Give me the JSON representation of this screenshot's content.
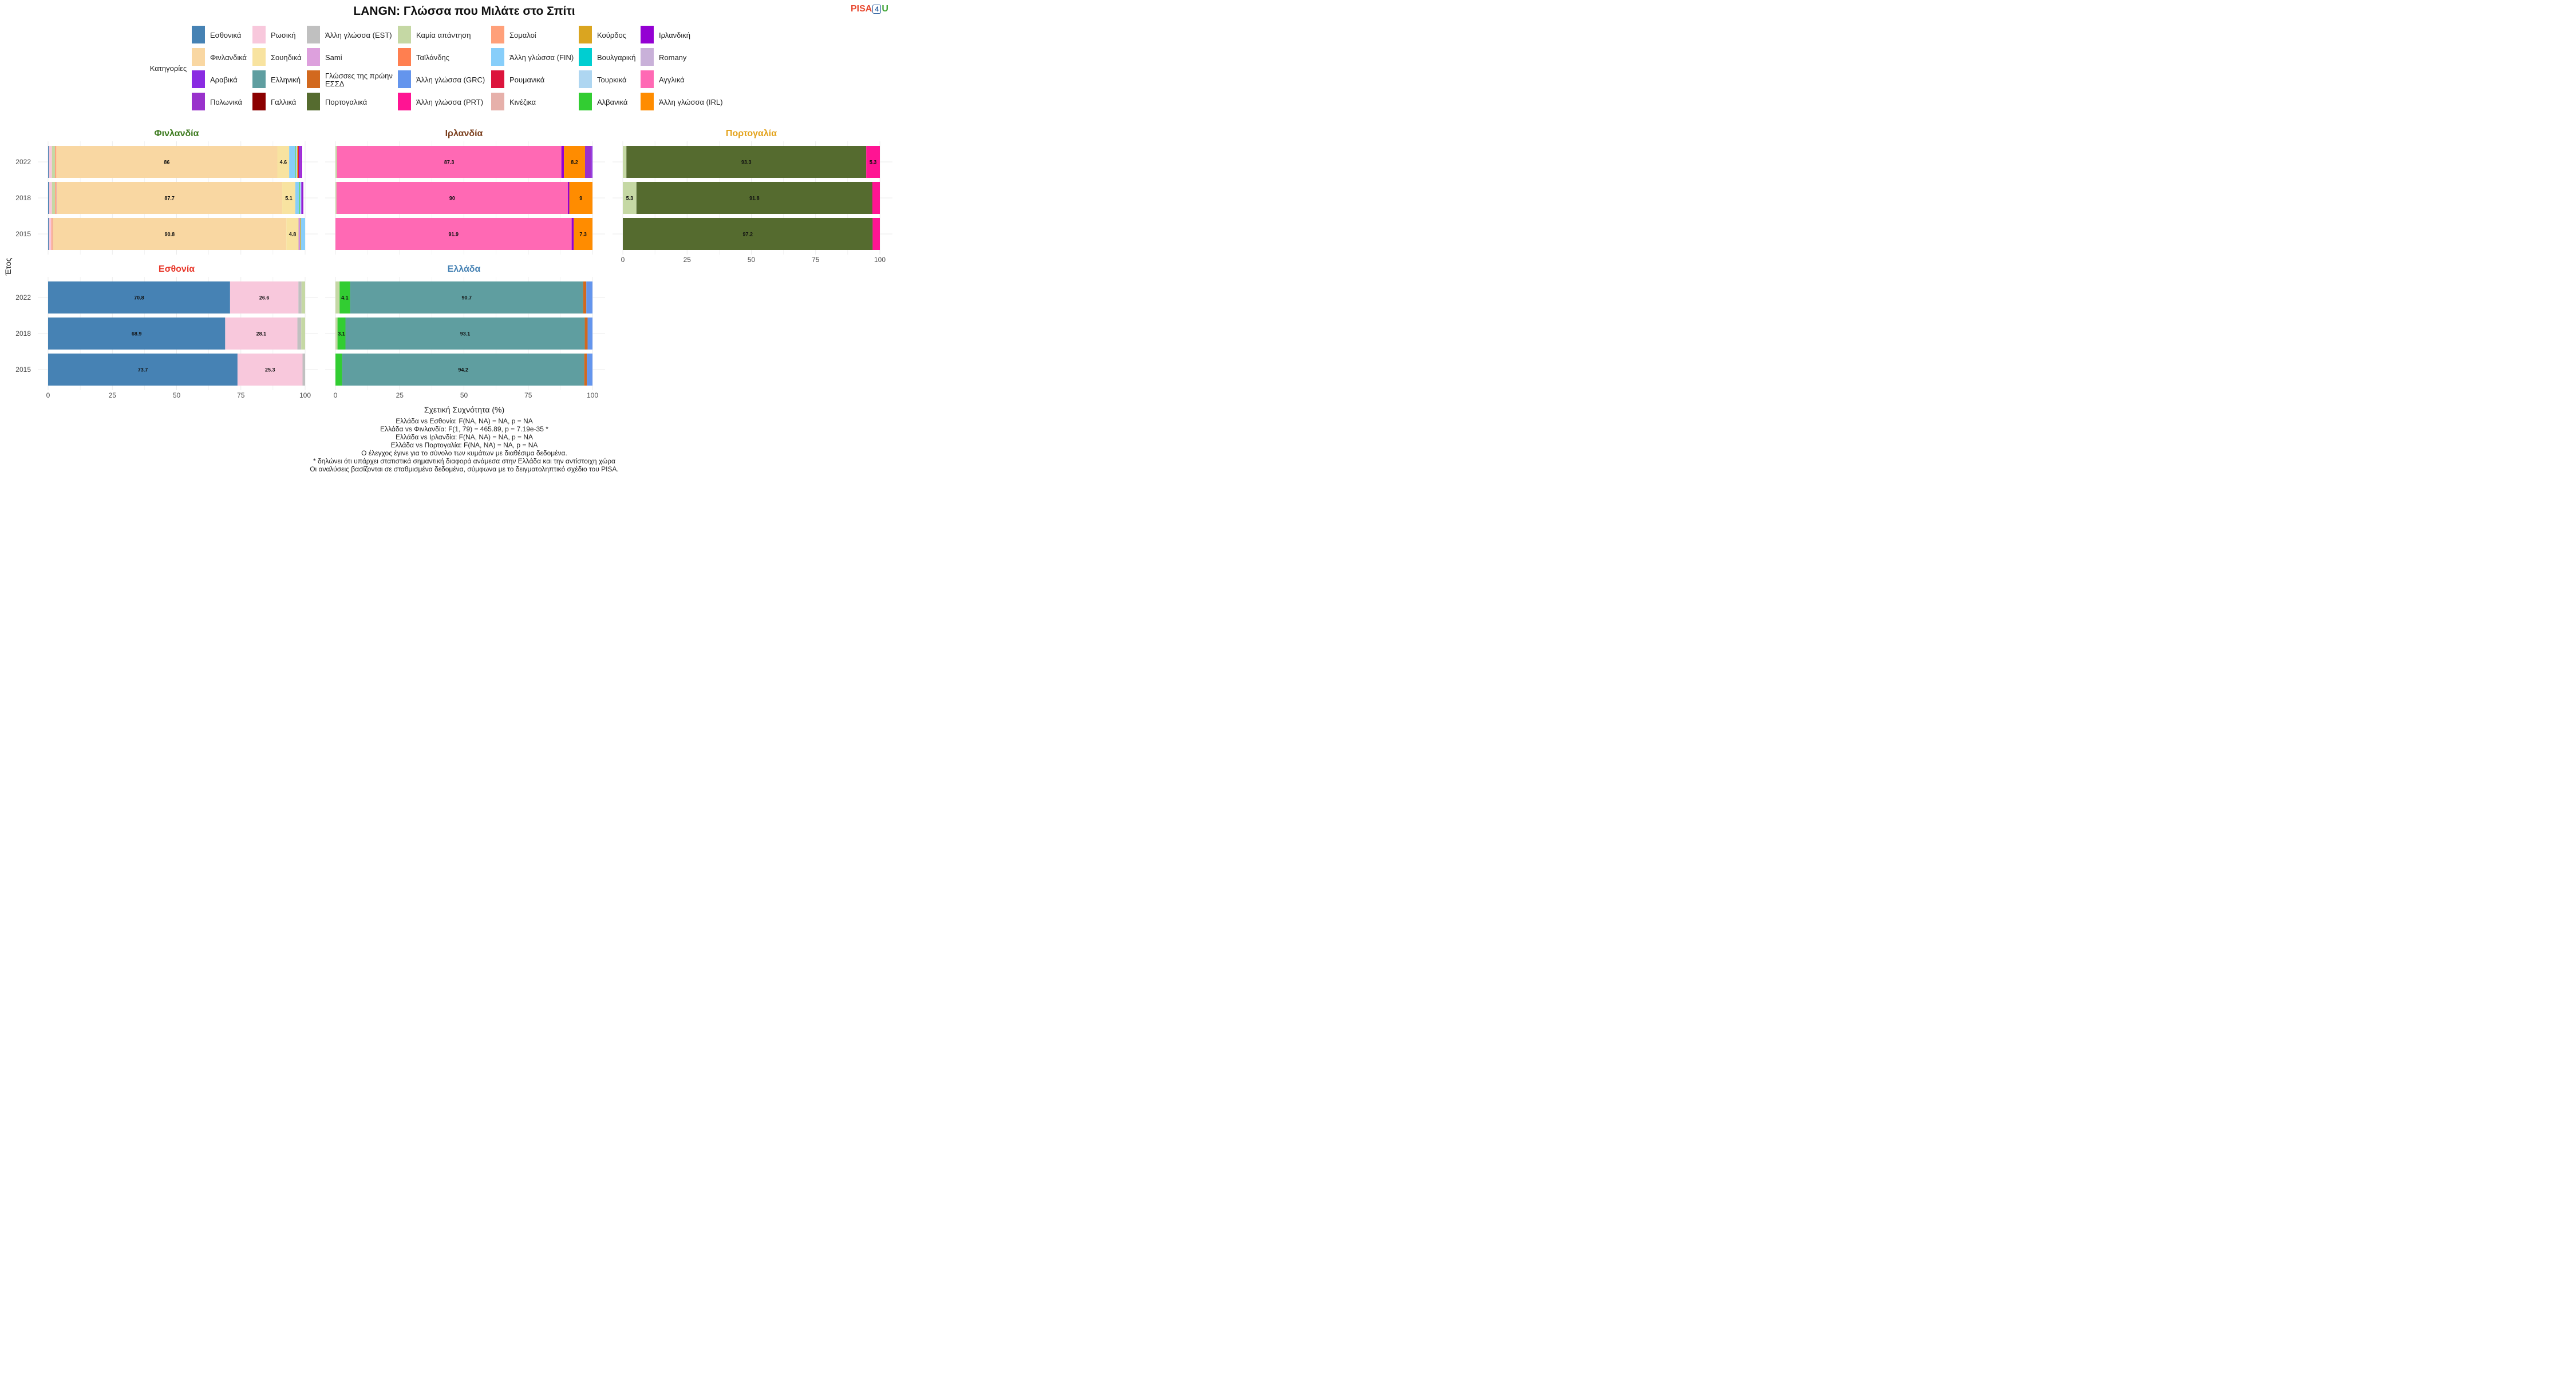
{
  "title": "LANGN: Γλώσσα που Μιλάτε στο Σπίτι",
  "logo": {
    "pisa": "PISA",
    "four": "4",
    "u": "U"
  },
  "legend": {
    "title": "Κατηγορίες",
    "items": [
      {
        "label": "Εσθονικά",
        "color": "#4682B4"
      },
      {
        "label": "Φινλανδικά",
        "color": "#F9D7A2"
      },
      {
        "label": "Αραβικά",
        "color": "#8A2BE2"
      },
      {
        "label": "Πολωνικά",
        "color": "#9932CC"
      },
      {
        "label": "Ρωσική",
        "color": "#F8C8DC"
      },
      {
        "label": "Σουηδικά",
        "color": "#F8E3A0"
      },
      {
        "label": "Ελληνική",
        "color": "#5F9EA0"
      },
      {
        "label": "Γαλλικά",
        "color": "#8B0000"
      },
      {
        "label": "Άλλη γλώσσα (EST)",
        "color": "#C0C0C0"
      },
      {
        "label": "Sami",
        "color": "#DDA0DD"
      },
      {
        "label": "Γλώσσες της πρώην ΕΣΣΔ",
        "color": "#D2691E"
      },
      {
        "label": "Πορτογαλικά",
        "color": "#556B2F"
      },
      {
        "label": "Καμία απάντηση",
        "color": "#C5D8A4"
      },
      {
        "label": "Ταϊλάνδης",
        "color": "#FF7F50"
      },
      {
        "label": "Άλλη γλώσσα (GRC)",
        "color": "#6495ED"
      },
      {
        "label": "Άλλη γλώσσα (PRT)",
        "color": "#FF1493"
      },
      {
        "label": "Σομαλοί",
        "color": "#FFA07A"
      },
      {
        "label": "Άλλη γλώσσα (FIN)",
        "color": "#87CEFA"
      },
      {
        "label": "Ρουμανικά",
        "color": "#DC143C"
      },
      {
        "label": "Κινέζικα",
        "color": "#E6B0AA"
      },
      {
        "label": "Κούρδος",
        "color": "#DAA520"
      },
      {
        "label": "Βουλγαρική",
        "color": "#00CED1"
      },
      {
        "label": "Τουρκικά",
        "color": "#AED6F1"
      },
      {
        "label": "Αλβανικά",
        "color": "#32CD32"
      },
      {
        "label": "Ιρλανδική",
        "color": "#9400D3"
      },
      {
        "label": "Romany",
        "color": "#C9B1D9"
      },
      {
        "label": "Αγγλικά",
        "color": "#FF69B4"
      },
      {
        "label": "Άλλη γλώσσα (IRL)",
        "color": "#FF8C00"
      }
    ]
  },
  "axis_titles": {
    "x": "Σχετική Συχνότητα (%)",
    "y": "Έτος"
  },
  "x_ticks": [
    0,
    25,
    50,
    75,
    100
  ],
  "chart_data": {
    "type": "bar",
    "orientation": "horizontal",
    "stacked": true,
    "xlim": [
      0,
      100
    ],
    "years": [
      "2022",
      "2018",
      "2015"
    ],
    "panels": [
      {
        "title": "Φινλανδία",
        "title_color": "#3C7A1E",
        "rows": [
          {
            "year": "2022",
            "segments": [
              {
                "category": "Εσθονικά",
                "value": 0.3
              },
              {
                "category": "Ρωσική",
                "value": 1.2
              },
              {
                "category": "Καμία απάντηση",
                "value": 1.2
              },
              {
                "category": "Σομαλοί",
                "value": 0.5
              },
              {
                "category": "Φινλανδικά",
                "value": 86,
                "label": "86"
              },
              {
                "category": "Σουηδικά",
                "value": 4.6,
                "label": "4.6"
              },
              {
                "category": "Άλλη γλώσσα (FIN)",
                "value": 2.2
              },
              {
                "category": "Αλβανικά",
                "value": 0.3
              },
              {
                "category": "Τουρκικά",
                "value": 0.6
              },
              {
                "category": "Κούρδος",
                "value": 0.4
              },
              {
                "category": "Ρουμανικά",
                "value": 0.3
              },
              {
                "category": "Αραβικά",
                "value": 0.5
              },
              {
                "category": "Πολωνικά",
                "value": 0.3
              },
              {
                "category": "Ιρλανδική",
                "value": 0.3
              }
            ]
          },
          {
            "year": "2018",
            "segments": [
              {
                "category": "Εσθονικά",
                "value": 0.4
              },
              {
                "category": "Ρωσική",
                "value": 1.1
              },
              {
                "category": "Καμία απάντηση",
                "value": 1.2
              },
              {
                "category": "Σομαλοί",
                "value": 0.4
              },
              {
                "category": "Κινέζικα",
                "value": 0.3
              },
              {
                "category": "Φινλανδικά",
                "value": 87.7,
                "label": "87.7"
              },
              {
                "category": "Σουηδικά",
                "value": 5.1,
                "label": "5.1"
              },
              {
                "category": "Άλλη γλώσσα (FIN)",
                "value": 1.4
              },
              {
                "category": "Αλβανικά",
                "value": 0.3
              },
              {
                "category": "Τουρκικά",
                "value": 0.6
              },
              {
                "category": "Αραβικά",
                "value": 0.3
              },
              {
                "category": "Πολωνικά",
                "value": 0.2
              },
              {
                "category": "Ιρλανδική",
                "value": 0.3
              }
            ]
          },
          {
            "year": "2015",
            "segments": [
              {
                "category": "Εσθονικά",
                "value": 0.3
              },
              {
                "category": "Ρωσική",
                "value": 1.0
              },
              {
                "category": "Σομαλοί",
                "value": 0.4
              },
              {
                "category": "Κινέζικα",
                "value": 0.2
              },
              {
                "category": "Φινλανδικά",
                "value": 90.8,
                "label": "90.8"
              },
              {
                "category": "Σουηδικά",
                "value": 4.8,
                "label": "4.8"
              },
              {
                "category": "Αραβικά",
                "value": 0.2
              },
              {
                "category": "Sami",
                "value": 0.3
              },
              {
                "category": "Κούρδος",
                "value": 0.3
              },
              {
                "category": "Άλλη γλώσσα (FIN)",
                "value": 1.7
              }
            ]
          }
        ]
      },
      {
        "title": "Ιρλανδία",
        "title_color": "#7B3F1D",
        "rows": [
          {
            "year": "2022",
            "segments": [
              {
                "category": "Καμία απάντηση",
                "value": 0.6
              },
              {
                "category": "Αγγλικά",
                "value": 87.3,
                "label": "87.3"
              },
              {
                "category": "Ιρλανδική",
                "value": 1.0
              },
              {
                "category": "Άλλη γλώσσα (IRL)",
                "value": 8.2,
                "label": "8.2"
              },
              {
                "category": "Πολωνικά",
                "value": 2.5
              },
              {
                "category": "Αραβικά",
                "value": 0.4
              }
            ]
          },
          {
            "year": "2018",
            "segments": [
              {
                "category": "Καμία απάντηση",
                "value": 0.4
              },
              {
                "category": "Αγγλικά",
                "value": 90,
                "label": "90"
              },
              {
                "category": "Ιρλανδική",
                "value": 0.6
              },
              {
                "category": "Άλλη γλώσσα (IRL)",
                "value": 9,
                "label": "9"
              }
            ]
          },
          {
            "year": "2015",
            "segments": [
              {
                "category": "Αγγλικά",
                "value": 91.9,
                "label": "91.9"
              },
              {
                "category": "Ιρλανδική",
                "value": 0.8
              },
              {
                "category": "Άλλη γλώσσα (IRL)",
                "value": 7.3,
                "label": "7.3"
              }
            ]
          }
        ]
      },
      {
        "title": "Πορτογαλία",
        "title_color": "#E3A21A",
        "rows": [
          {
            "year": "2022",
            "segments": [
              {
                "category": "Καμία απάντηση",
                "value": 1.4
              },
              {
                "category": "Πορτογαλικά",
                "value": 93.3,
                "label": "93.3"
              },
              {
                "category": "Άλλη γλώσσα (PRT)",
                "value": 5.3,
                "label": "5.3"
              }
            ]
          },
          {
            "year": "2018",
            "segments": [
              {
                "category": "Καμία απάντηση",
                "value": 5.3,
                "label": "5.3"
              },
              {
                "category": "Πορτογαλικά",
                "value": 91.8,
                "label": "91.8"
              },
              {
                "category": "Άλλη γλώσσα (PRT)",
                "value": 2.9
              }
            ]
          },
          {
            "year": "2015",
            "segments": [
              {
                "category": "Πορτογαλικά",
                "value": 97.2,
                "label": "97.2"
              },
              {
                "category": "Άλλη γλώσσα (PRT)",
                "value": 2.8
              }
            ]
          }
        ]
      },
      {
        "title": "Εσθονία",
        "title_color": "#E8382B",
        "rows": [
          {
            "year": "2022",
            "segments": [
              {
                "category": "Εσθονικά",
                "value": 70.8,
                "label": "70.8"
              },
              {
                "category": "Ρωσική",
                "value": 26.6,
                "label": "26.6"
              },
              {
                "category": "Άλλη γλώσσα (EST)",
                "value": 1.2
              },
              {
                "category": "Καμία απάντηση",
                "value": 1.4
              }
            ]
          },
          {
            "year": "2018",
            "segments": [
              {
                "category": "Εσθονικά",
                "value": 68.9,
                "label": "68.9"
              },
              {
                "category": "Ρωσική",
                "value": 28.1,
                "label": "28.1"
              },
              {
                "category": "Άλλη γλώσσα (EST)",
                "value": 1.5
              },
              {
                "category": "Καμία απάντηση",
                "value": 1.5
              }
            ]
          },
          {
            "year": "2015",
            "segments": [
              {
                "category": "Εσθονικά",
                "value": 73.7,
                "label": "73.7"
              },
              {
                "category": "Ρωσική",
                "value": 25.3,
                "label": "25.3"
              },
              {
                "category": "Άλλη γλώσσα (EST)",
                "value": 1.0
              }
            ]
          }
        ]
      },
      {
        "title": "Ελλάδα",
        "title_color": "#4682B4",
        "rows": [
          {
            "year": "2022",
            "segments": [
              {
                "category": "Καμία απάντηση",
                "value": 1.6
              },
              {
                "category": "Αλβανικά",
                "value": 4.1,
                "label": "4.1"
              },
              {
                "category": "Ελληνική",
                "value": 90.7,
                "label": "90.7"
              },
              {
                "category": "Γλώσσες της πρώην ΕΣΣΔ",
                "value": 1.2
              },
              {
                "category": "Άλλη γλώσσα (GRC)",
                "value": 2.4
              }
            ]
          },
          {
            "year": "2018",
            "segments": [
              {
                "category": "Καμία απάντηση",
                "value": 0.8
              },
              {
                "category": "Αλβανικά",
                "value": 3.1,
                "label": "3.1"
              },
              {
                "category": "Ελληνική",
                "value": 93.1,
                "label": "93.1"
              },
              {
                "category": "Γλώσσες της πρώην ΕΣΣΔ",
                "value": 1.1
              },
              {
                "category": "Άλλη γλώσσα (GRC)",
                "value": 1.9
              }
            ]
          },
          {
            "year": "2015",
            "segments": [
              {
                "category": "Αλβανικά",
                "value": 2.6
              },
              {
                "category": "Ελληνική",
                "value": 94.2,
                "label": "94.2"
              },
              {
                "category": "Γλώσσες της πρώην ΕΣΣΔ",
                "value": 1.0
              },
              {
                "category": "Άλλη γλώσσα (GRC)",
                "value": 2.2
              }
            ]
          }
        ]
      }
    ]
  },
  "footnotes": [
    "Ελλάδα vs Εσθονία: F(NA, NA) = NA, p = NA",
    "Ελλάδα vs Φινλανδία: F(1, 79) = 465.89, p = 7.19e-35 *",
    "Ελλάδα vs Ιρλανδία: F(NA, NA) = NA, p = NA",
    "Ελλάδα vs Πορτογαλία: F(NA, NA) = NA, p = NA",
    "Ο έλεγχος έγινε για το σύνολο των κυμάτων με διαθέσιμα δεδομένα.",
    "* δηλώνει ότι υπάρχει στατιστικά σημαντική διαφορά ανάμεσα στην Ελλάδα και την αντίστοιχη χώρα",
    "Οι αναλύσεις βασίζονται σε σταθμισμένα δεδομένα, σύμφωνα με το δειγματοληπτικό σχέδιο του PISA."
  ]
}
